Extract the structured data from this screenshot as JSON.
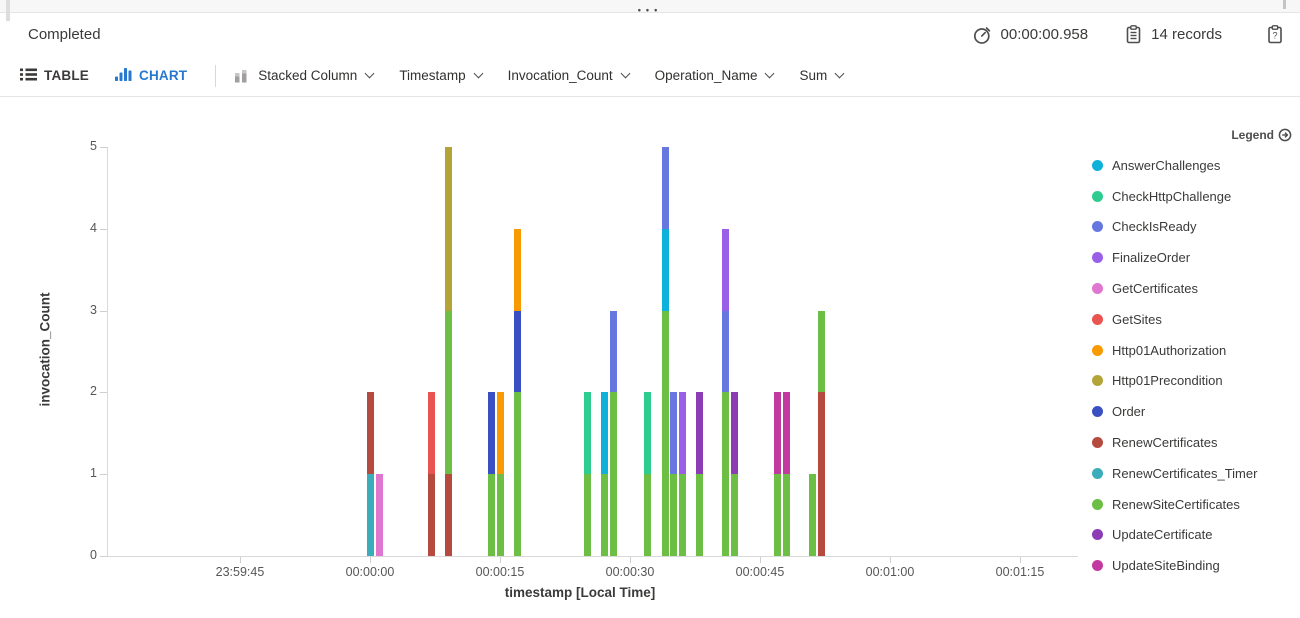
{
  "panel": {
    "drag_handle": "•••"
  },
  "status_bar": {
    "status": "Completed",
    "elapsed_time": "00:00:00.958",
    "record_count": "14 records"
  },
  "toolbar": {
    "table_tab": "TABLE",
    "chart_tab": "CHART",
    "chart_type": "Stacked Column",
    "x_column": "Timestamp",
    "y_column": "Invocation_Count",
    "split_column": "Operation_Name",
    "aggregation": "Sum"
  },
  "colors": {
    "accent_blue": "#2779d0"
  },
  "chart_data": {
    "type": "bar",
    "stacked": true,
    "title": "",
    "xlabel": "timestamp [Local Time]",
    "ylabel": "invocation_Count",
    "ylim": [
      0,
      5
    ],
    "yticks": [
      0,
      1,
      2,
      3,
      4,
      5
    ],
    "x_unit": "seconds offset from 00:00:00 (Local Time)",
    "xticks": [
      {
        "t": -15,
        "label": "23:59:45"
      },
      {
        "t": 0,
        "label": "00:00:00"
      },
      {
        "t": 15,
        "label": "00:00:15"
      },
      {
        "t": 30,
        "label": "00:00:30"
      },
      {
        "t": 45,
        "label": "00:00:45"
      },
      {
        "t": 60,
        "label": "00:01:00"
      },
      {
        "t": 75,
        "label": "00:01:15"
      }
    ],
    "legend_title": "Legend",
    "legend_position": "right",
    "series": [
      {
        "name": "AnswerChallenges",
        "color": "#0db1d9"
      },
      {
        "name": "CheckHttpChallenge",
        "color": "#2ecc8f"
      },
      {
        "name": "CheckIsReady",
        "color": "#6677e0"
      },
      {
        "name": "FinalizeOrder",
        "color": "#995fe6"
      },
      {
        "name": "GetCertificates",
        "color": "#df76d0"
      },
      {
        "name": "GetSites",
        "color": "#ea5450"
      },
      {
        "name": "Http01Authorization",
        "color": "#f89a02"
      },
      {
        "name": "Http01Precondition",
        "color": "#b4a437"
      },
      {
        "name": "Order",
        "color": "#3a50c2"
      },
      {
        "name": "RenewCertificates",
        "color": "#b54a3e"
      },
      {
        "name": "RenewCertificates_Timer",
        "color": "#3aacba"
      },
      {
        "name": "RenewSiteCertificates",
        "color": "#6cbe45"
      },
      {
        "name": "UpdateCertificate",
        "color": "#8c3cb4"
      },
      {
        "name": "UpdateSiteBinding",
        "color": "#c23aa0"
      }
    ],
    "bars": [
      {
        "t": 0,
        "segments": [
          {
            "series": "RenewCertificates_Timer",
            "value": 1
          },
          {
            "series": "RenewCertificates",
            "value": 1
          }
        ]
      },
      {
        "t": 1,
        "segments": [
          {
            "series": "GetCertificates",
            "value": 1
          }
        ]
      },
      {
        "t": 7,
        "segments": [
          {
            "series": "RenewCertificates",
            "value": 1
          },
          {
            "series": "GetSites",
            "value": 1
          }
        ]
      },
      {
        "t": 9,
        "segments": [
          {
            "series": "RenewCertificates",
            "value": 1
          },
          {
            "series": "RenewSiteCertificates",
            "value": 2
          },
          {
            "series": "Http01Precondition",
            "value": 2
          }
        ]
      },
      {
        "t": 14,
        "segments": [
          {
            "series": "RenewSiteCertificates",
            "value": 1
          },
          {
            "series": "Order",
            "value": 1
          }
        ]
      },
      {
        "t": 15,
        "segments": [
          {
            "series": "RenewSiteCertificates",
            "value": 1
          },
          {
            "series": "Http01Authorization",
            "value": 1
          }
        ]
      },
      {
        "t": 17,
        "segments": [
          {
            "series": "RenewSiteCertificates",
            "value": 2
          },
          {
            "series": "Order",
            "value": 1
          },
          {
            "series": "Http01Authorization",
            "value": 1
          }
        ]
      },
      {
        "t": 25,
        "segments": [
          {
            "series": "RenewSiteCertificates",
            "value": 1
          },
          {
            "series": "CheckHttpChallenge",
            "value": 1
          }
        ]
      },
      {
        "t": 27,
        "segments": [
          {
            "series": "RenewSiteCertificates",
            "value": 1
          },
          {
            "series": "AnswerChallenges",
            "value": 1
          }
        ]
      },
      {
        "t": 28,
        "segments": [
          {
            "series": "RenewSiteCertificates",
            "value": 2
          },
          {
            "series": "CheckIsReady",
            "value": 1
          }
        ]
      },
      {
        "t": 32,
        "segments": [
          {
            "series": "RenewSiteCertificates",
            "value": 1
          },
          {
            "series": "CheckHttpChallenge",
            "value": 1
          }
        ]
      },
      {
        "t": 34,
        "segments": [
          {
            "series": "RenewSiteCertificates",
            "value": 3
          },
          {
            "series": "AnswerChallenges",
            "value": 1
          },
          {
            "series": "CheckIsReady",
            "value": 1
          }
        ]
      },
      {
        "t": 35,
        "segments": [
          {
            "series": "RenewSiteCertificates",
            "value": 1
          },
          {
            "series": "CheckIsReady",
            "value": 1
          }
        ]
      },
      {
        "t": 36,
        "segments": [
          {
            "series": "RenewSiteCertificates",
            "value": 1
          },
          {
            "series": "FinalizeOrder",
            "value": 1
          }
        ]
      },
      {
        "t": 38,
        "segments": [
          {
            "series": "RenewSiteCertificates",
            "value": 1
          },
          {
            "series": "UpdateCertificate",
            "value": 1
          }
        ]
      },
      {
        "t": 41,
        "segments": [
          {
            "series": "RenewSiteCertificates",
            "value": 2
          },
          {
            "series": "CheckIsReady",
            "value": 1
          },
          {
            "series": "FinalizeOrder",
            "value": 1
          }
        ]
      },
      {
        "t": 42,
        "segments": [
          {
            "series": "RenewSiteCertificates",
            "value": 1
          },
          {
            "series": "UpdateCertificate",
            "value": 1
          }
        ]
      },
      {
        "t": 47,
        "segments": [
          {
            "series": "RenewSiteCertificates",
            "value": 1
          },
          {
            "series": "UpdateSiteBinding",
            "value": 1
          }
        ]
      },
      {
        "t": 48,
        "segments": [
          {
            "series": "RenewSiteCertificates",
            "value": 1
          },
          {
            "series": "UpdateSiteBinding",
            "value": 1
          }
        ]
      },
      {
        "t": 51,
        "segments": [
          {
            "series": "RenewSiteCertificates",
            "value": 1
          }
        ]
      },
      {
        "t": 52,
        "segments": [
          {
            "series": "RenewCertificates",
            "value": 2
          },
          {
            "series": "RenewSiteCertificates",
            "value": 1
          }
        ]
      }
    ]
  }
}
